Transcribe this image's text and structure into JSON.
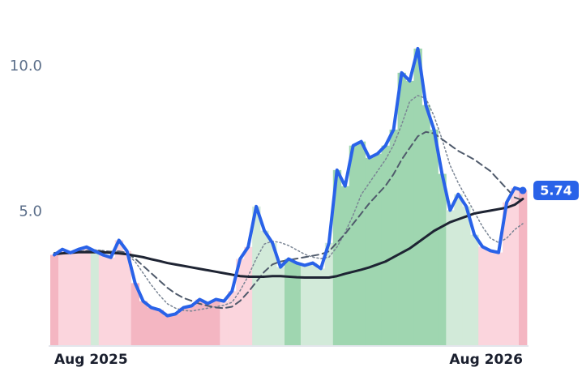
{
  "chart_data": {
    "type": "line",
    "categories": [
      "Aug 2025",
      null,
      null,
      null,
      null,
      null,
      null,
      null,
      null,
      null,
      null,
      null,
      null,
      null,
      null,
      null,
      null,
      null,
      null,
      null,
      null,
      null,
      null,
      null,
      null,
      null,
      null,
      null,
      null,
      null,
      null,
      null,
      null,
      null,
      null,
      null,
      null,
      null,
      null,
      null,
      null,
      null,
      null,
      null,
      null,
      null,
      null,
      null,
      null,
      null,
      null,
      null,
      null,
      null,
      null,
      null,
      null,
      null,
      "Aug 2026"
    ],
    "ylim": [
      0.4,
      12
    ],
    "yticks": [
      {
        "value": 5,
        "label": "5.0"
      },
      {
        "value": 10,
        "label": "10.0"
      }
    ],
    "grid": false,
    "series": [
      {
        "color": "#2962e8",
        "width": 4,
        "dash": "none",
        "bars": true,
        "values": [
          3.53,
          3.72,
          3.6,
          3.72,
          3.8,
          3.66,
          3.53,
          3.44,
          4.03,
          3.66,
          2.56,
          1.94,
          1.72,
          1.64,
          1.44,
          1.5,
          1.72,
          1.78,
          2.0,
          1.86,
          2.0,
          1.94,
          2.28,
          3.39,
          3.8,
          5.19,
          4.36,
          3.94,
          3.11,
          3.39,
          3.25,
          3.17,
          3.25,
          3.06,
          3.94,
          6.44,
          5.89,
          7.28,
          7.42,
          6.86,
          7.0,
          7.28,
          7.83,
          9.78,
          9.5,
          10.61,
          8.67,
          7.83,
          6.31,
          5.06,
          5.61,
          5.19,
          4.22,
          3.81,
          3.67,
          3.61,
          5.33,
          5.83,
          5.74
        ],
        "last_label": "5.74"
      },
      {
        "color": "#1e2433",
        "width": 3,
        "dash": "none",
        "values": [
          3.55,
          3.58,
          3.6,
          3.62,
          3.62,
          3.62,
          3.62,
          3.6,
          3.58,
          3.55,
          3.5,
          3.45,
          3.38,
          3.32,
          3.25,
          3.2,
          3.15,
          3.1,
          3.05,
          3.0,
          2.95,
          2.9,
          2.85,
          2.8,
          2.78,
          2.78,
          2.78,
          2.8,
          2.8,
          2.78,
          2.76,
          2.75,
          2.75,
          2.75,
          2.75,
          2.8,
          2.88,
          2.95,
          3.02,
          3.1,
          3.2,
          3.3,
          3.45,
          3.6,
          3.75,
          3.95,
          4.15,
          4.35,
          4.5,
          4.65,
          4.75,
          4.85,
          4.95,
          5.0,
          5.05,
          5.1,
          5.15,
          5.25,
          5.45
        ]
      },
      {
        "color": "#4f5a6b",
        "width": 2,
        "dash": "8,5",
        "values": [
          3.6,
          3.62,
          3.63,
          3.65,
          3.66,
          3.67,
          3.66,
          3.64,
          3.65,
          3.6,
          3.4,
          3.15,
          2.9,
          2.65,
          2.4,
          2.2,
          2.05,
          1.95,
          1.85,
          1.78,
          1.72,
          1.7,
          1.75,
          1.95,
          2.25,
          2.6,
          2.95,
          3.2,
          3.3,
          3.35,
          3.4,
          3.45,
          3.5,
          3.55,
          3.65,
          3.95,
          4.25,
          4.6,
          4.95,
          5.3,
          5.6,
          5.9,
          6.3,
          6.8,
          7.2,
          7.6,
          7.75,
          7.7,
          7.5,
          7.3,
          7.1,
          6.95,
          6.8,
          6.6,
          6.4,
          6.1,
          5.8,
          5.5,
          5.4
        ]
      },
      {
        "color": "#7a8594",
        "width": 1.5,
        "dash": "2,3",
        "values": [
          3.55,
          3.6,
          3.62,
          3.65,
          3.68,
          3.7,
          3.68,
          3.62,
          3.65,
          3.55,
          3.3,
          2.9,
          2.5,
          2.15,
          1.85,
          1.7,
          1.62,
          1.6,
          1.65,
          1.7,
          1.75,
          1.8,
          1.9,
          2.3,
          2.8,
          3.4,
          3.9,
          4.0,
          3.95,
          3.85,
          3.7,
          3.55,
          3.45,
          3.4,
          3.45,
          3.8,
          4.3,
          4.9,
          5.6,
          6.0,
          6.4,
          6.8,
          7.3,
          8.0,
          8.8,
          9.0,
          8.9,
          8.3,
          7.5,
          6.6,
          6.0,
          5.5,
          5.0,
          4.5,
          4.1,
          3.95,
          4.1,
          4.4,
          4.6
        ]
      }
    ],
    "band_colors": [
      "#f4b6c2",
      "#fbd5dd",
      "#fbd5dd",
      "#fbd5dd",
      "#fbd5dd",
      "#d2ead9",
      "#fbd5dd",
      "#fbd5dd",
      "#fbd5dd",
      "#fbd5dd",
      "#f4b6c2",
      "#f4b6c2",
      "#f4b6c2",
      "#f4b6c2",
      "#f4b6c2",
      "#f4b6c2",
      "#f4b6c2",
      "#f4b6c2",
      "#f4b6c2",
      "#f4b6c2",
      "#f4b6c2",
      "#fbd5dd",
      "#fbd5dd",
      "#fbd5dd",
      "#fbd5dd",
      "#d2ead9",
      "#d2ead9",
      "#d2ead9",
      "#d2ead9",
      "#9fd6b0",
      "#9fd6b0",
      "#d2ead9",
      "#d2ead9",
      "#d2ead9",
      "#d2ead9",
      "#9fd6b0",
      "#9fd6b0",
      "#9fd6b0",
      "#9fd6b0",
      "#9fd6b0",
      "#9fd6b0",
      "#9fd6b0",
      "#9fd6b0",
      "#9fd6b0",
      "#9fd6b0",
      "#9fd6b0",
      "#9fd6b0",
      "#9fd6b0",
      "#9fd6b0",
      "#d2ead9",
      "#d2ead9",
      "#d2ead9",
      "#d2ead9",
      "#fbd5dd",
      "#fbd5dd",
      "#fbd5dd",
      "#fbd5dd",
      "#fbd5dd",
      "#f4b6c2"
    ]
  }
}
